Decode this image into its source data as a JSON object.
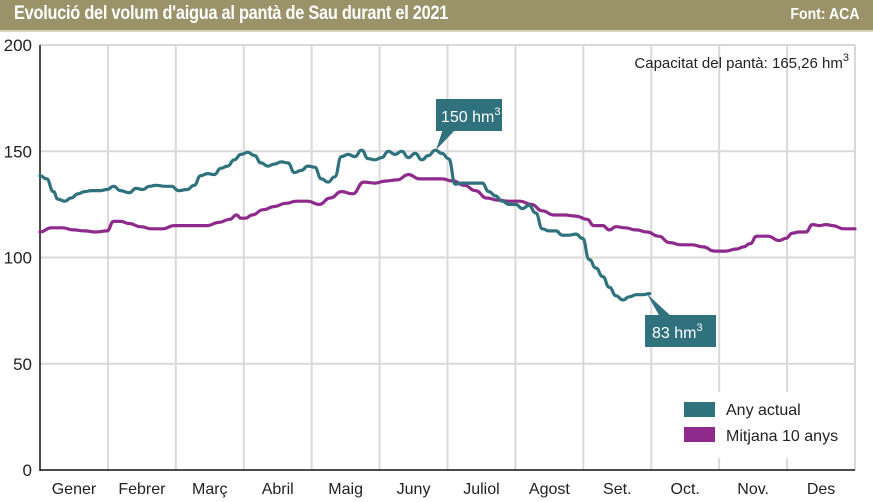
{
  "header": {
    "title": "Evolució del volum d'aigua al pantà de Sau durant el 2021",
    "source": "Font: ACA"
  },
  "colors": {
    "header_bg": "#9a9268",
    "actual": "#2f717c",
    "average": "#8e2a8c",
    "grid": "#d9d9d9"
  },
  "chart_data": {
    "type": "line",
    "title": "Evolució del volum d'aigua al pantà de Sau durant el 2021",
    "xlabel": "",
    "ylabel": "",
    "ylim": [
      0,
      200
    ],
    "yticks": [
      "0",
      "50",
      "100",
      "150",
      "200"
    ],
    "ytick_values": [
      0,
      50,
      100,
      150,
      200
    ],
    "xlim": [
      0,
      365
    ],
    "categories": [
      "Gener",
      "Febrer",
      "Març",
      "Abril",
      "Maig",
      "Juny",
      "Juliol",
      "Agost",
      "Set.",
      "Oct.",
      "Nov.",
      "Des"
    ],
    "grid": true,
    "legend_position": "bottom-right",
    "capacity_note": {
      "text": "Capacitat del pantà: 165,26 hm",
      "sup": "3"
    },
    "annotations": [
      {
        "text": "150 hm",
        "sup": "3",
        "day": 178,
        "value": 150
      },
      {
        "text": "83 hm",
        "sup": "3",
        "day": 272,
        "value": 83
      }
    ],
    "series": [
      {
        "name": "Any actual",
        "x": [
          0,
          3,
          6,
          8,
          11,
          14,
          17,
          20,
          23,
          27,
          30,
          33,
          36,
          40,
          43,
          46,
          49,
          52,
          56,
          59,
          62,
          66,
          69,
          72,
          75,
          78,
          81,
          84,
          87,
          90,
          93,
          96,
          99,
          102,
          105,
          108,
          111,
          114,
          117,
          120,
          123,
          126,
          129,
          132,
          135,
          138,
          141,
          144,
          147,
          150,
          153,
          156,
          159,
          162,
          165,
          168,
          171,
          174,
          177,
          180,
          183,
          186,
          189,
          192,
          195,
          198,
          201,
          204,
          207,
          210,
          213,
          216,
          219,
          222,
          225,
          228,
          231,
          234,
          237,
          240,
          243,
          246,
          249,
          252,
          255,
          258,
          261,
          264,
          267,
          270,
          273
        ],
        "values": [
          138.5,
          137,
          131,
          127.5,
          126.5,
          128,
          130,
          131,
          131.5,
          131.5,
          132,
          133.5,
          131.5,
          130.5,
          132.5,
          132,
          133.5,
          134,
          133.5,
          133.5,
          131.5,
          132,
          134,
          138.5,
          139.5,
          139,
          142,
          143,
          146,
          148.5,
          149.5,
          148,
          144.5,
          143,
          144,
          145,
          144.5,
          140,
          141,
          143,
          142.5,
          137,
          135.5,
          138,
          147.5,
          148.5,
          147.5,
          150.5,
          146.5,
          146,
          147,
          150,
          148.5,
          150,
          147,
          149,
          146,
          148,
          150.5,
          149,
          146.5,
          134.5,
          135,
          135,
          135,
          135,
          131,
          129,
          126.5,
          125,
          125,
          123,
          124.5,
          121,
          113.5,
          112.5,
          112.5,
          110.5,
          110.5,
          111,
          109,
          99,
          95,
          91,
          86,
          82,
          80,
          81.5,
          82.5,
          82.5,
          83
        ]
      },
      {
        "name": "Mitjana 10 anys",
        "x": [
          0,
          5,
          10,
          15,
          20,
          25,
          30,
          33,
          36,
          40,
          45,
          50,
          55,
          60,
          65,
          70,
          75,
          80,
          85,
          88,
          90,
          92,
          95,
          100,
          105,
          110,
          115,
          120,
          125,
          130,
          135,
          140,
          145,
          150,
          155,
          160,
          165,
          170,
          175,
          180,
          185,
          190,
          195,
          200,
          205,
          210,
          215,
          220,
          225,
          230,
          235,
          240,
          245,
          248,
          252,
          255,
          258,
          262,
          267,
          272,
          277,
          282,
          287,
          292,
          297,
          302,
          307,
          312,
          315,
          318,
          321,
          326,
          331,
          334,
          337,
          340,
          343,
          346,
          349,
          352,
          355,
          360,
          365
        ],
        "values": [
          112,
          114,
          114,
          113,
          112.5,
          112,
          112.5,
          117,
          117,
          116,
          114.5,
          113.5,
          113.5,
          115,
          115,
          115,
          115,
          116.5,
          118,
          120,
          118.5,
          118.5,
          120,
          122.5,
          124,
          125.5,
          126.5,
          126.5,
          125,
          128,
          131,
          130,
          135.5,
          135,
          136,
          136.5,
          139,
          137,
          137,
          137,
          136,
          134,
          131.5,
          128,
          127,
          126.5,
          126.5,
          125,
          122,
          120,
          120,
          119.5,
          118,
          115,
          115,
          113,
          114.5,
          114,
          113,
          112,
          110,
          107,
          106,
          106,
          105,
          103,
          103,
          104,
          105,
          106.5,
          110,
          110,
          108,
          109,
          111.5,
          112,
          112,
          115.5,
          115,
          115.5,
          115,
          113.5,
          113.5
        ]
      }
    ]
  }
}
